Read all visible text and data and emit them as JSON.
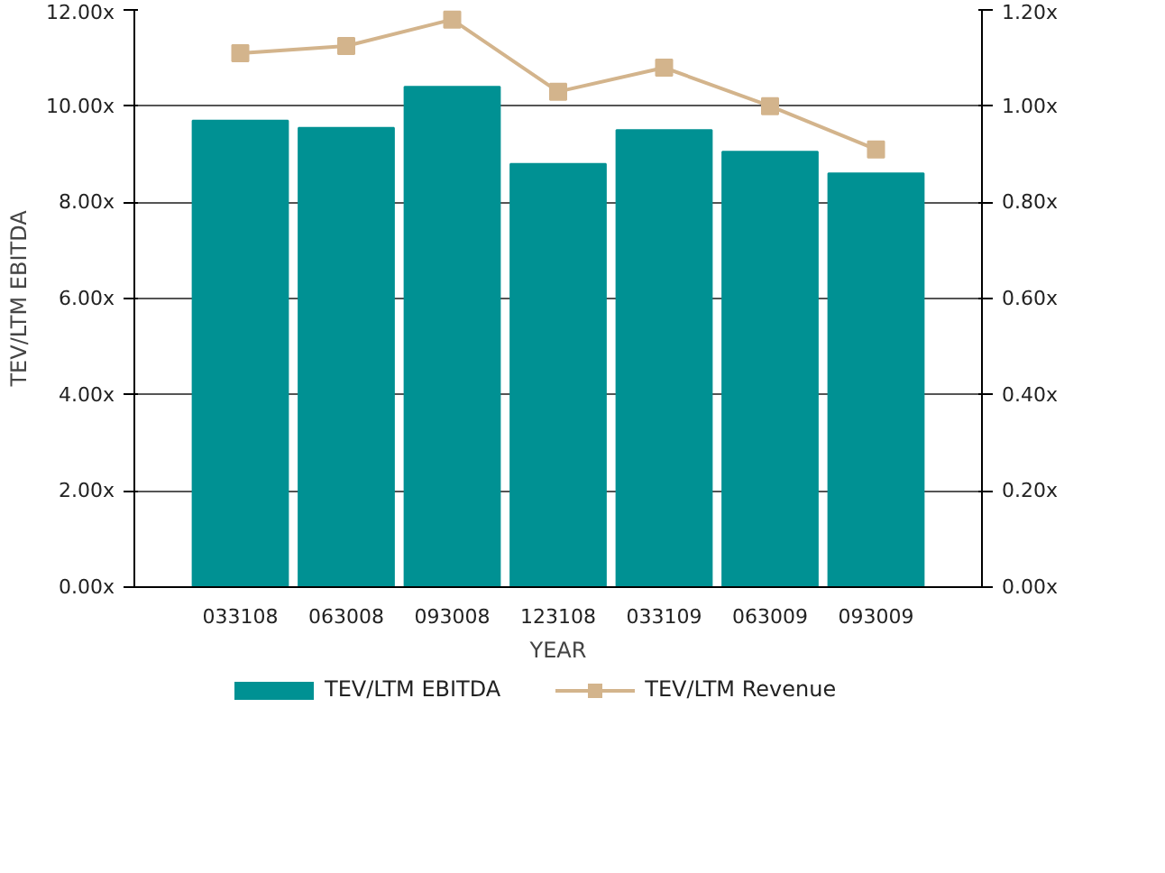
{
  "chart_data": {
    "type": "bar",
    "xlabel": "YEAR",
    "ylabel": "TEV/LTM EBITDA",
    "categories": [
      "033108",
      "063008",
      "093008",
      "123108",
      "033109",
      "063009",
      "093009"
    ],
    "series": [
      {
        "name": "TEV/LTM EBITDA",
        "color": "#009193",
        "values": [
          9.7,
          9.55,
          10.4,
          8.8,
          9.5,
          9.05,
          8.6
        ]
      },
      {
        "name": "TEV/LTM Revenue",
        "type": "line",
        "axis": "y2",
        "color": "#d3b48c",
        "marker": "square",
        "values": [
          1.11,
          1.125,
          1.18,
          1.03,
          1.08,
          1.0,
          0.91
        ]
      }
    ],
    "ylim": [
      0,
      12
    ],
    "yticks": [
      {
        "value": 0,
        "label": "0.00x"
      },
      {
        "value": 2,
        "label": "2.00x"
      },
      {
        "value": 4,
        "label": "4.00x"
      },
      {
        "value": 6,
        "label": "6.00x"
      },
      {
        "value": 8,
        "label": "8.00x"
      },
      {
        "value": 10,
        "label": "10.00x"
      },
      {
        "value": 12,
        "label": "12.00x"
      }
    ],
    "y2lim": [
      0,
      1.2
    ],
    "y2ticks": [
      {
        "value": 0,
        "label": "0.00x"
      },
      {
        "value": 0.2,
        "label": "0.20x"
      },
      {
        "value": 0.4,
        "label": "0.40x"
      },
      {
        "value": 0.6,
        "label": "0.60x"
      },
      {
        "value": 0.8,
        "label": "0.80x"
      },
      {
        "value": 1.0,
        "label": "1.00x"
      },
      {
        "value": 1.2,
        "label": "1.20x"
      }
    ],
    "grid": "y",
    "legend": "bottom"
  }
}
